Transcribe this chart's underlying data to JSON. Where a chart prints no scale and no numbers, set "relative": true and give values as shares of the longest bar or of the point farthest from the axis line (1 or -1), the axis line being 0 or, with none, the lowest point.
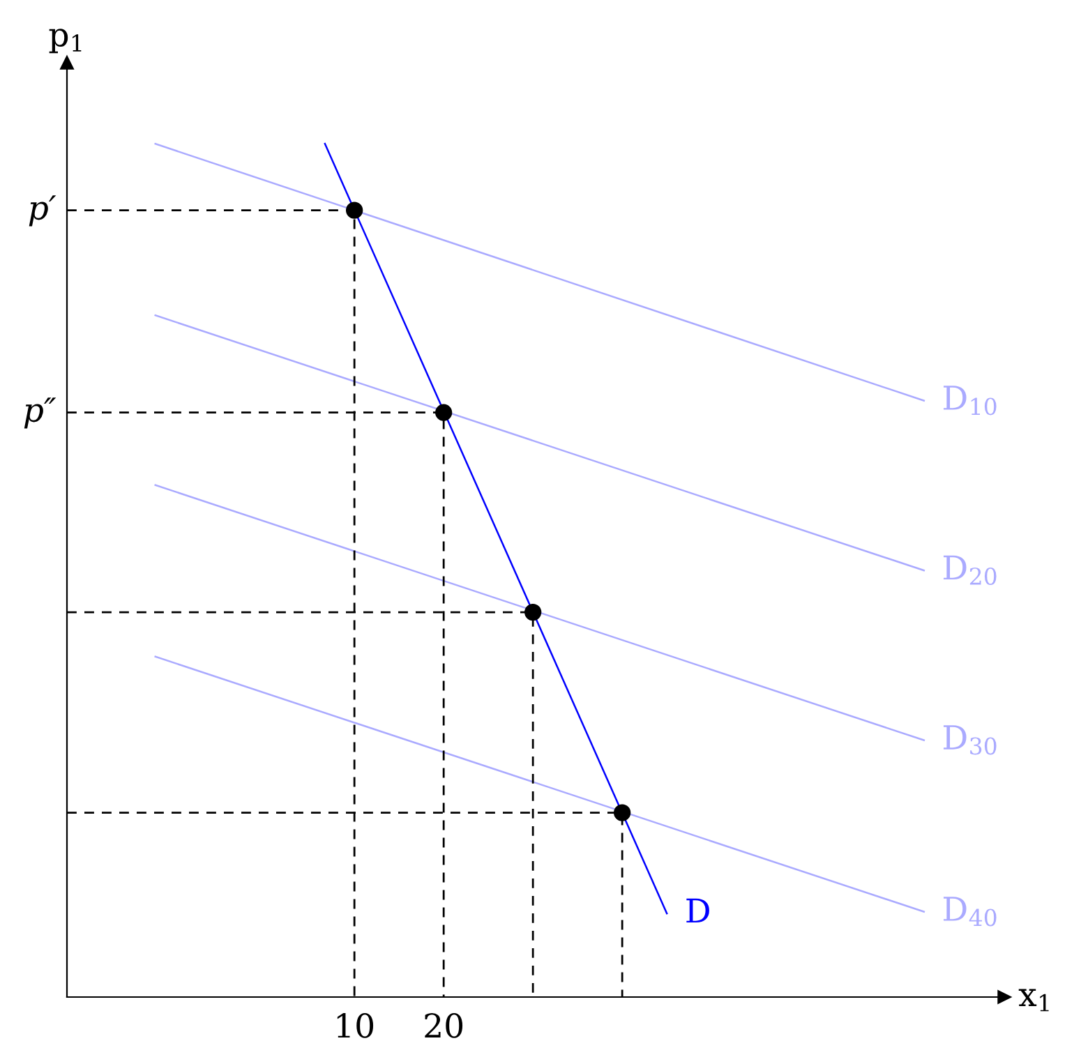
{
  "chart_data": {
    "type": "line",
    "relative": true,
    "xlabel": "x$_{1}$",
    "ylabel": "p$_{1}$",
    "xlim": [
      -22.2,
      82.8
    ],
    "xticks": [
      10,
      20
    ],
    "grid": false,
    "legend": false,
    "series": [
      {
        "name": "D$_{10}$",
        "color": "#aaaaff",
        "line_style": "solid",
        "x": [
          -12.3,
          73.8
        ],
        "values": [
          1.0,
          0.699
        ]
      },
      {
        "name": "D$_{20}$",
        "color": "#aaaaff",
        "line_style": "solid",
        "x": [
          -12.3,
          73.8
        ],
        "values": [
          0.799,
          0.5
        ]
      },
      {
        "name": "D$_{30}$",
        "color": "#aaaaff",
        "line_style": "solid",
        "x": [
          -12.3,
          73.8
        ],
        "values": [
          0.6,
          0.301
        ]
      },
      {
        "name": "D$_{40}$",
        "color": "#aaaaff",
        "line_style": "solid",
        "x": [
          -12.3,
          73.8
        ],
        "values": [
          0.399,
          0.1
        ]
      },
      {
        "name": "D",
        "color": "#0000ff",
        "line_style": "solid",
        "x": [
          6.7,
          45.0
        ],
        "values": [
          1.0,
          0.098
        ]
      },
      {
        "color": "#000000",
        "line_style": "dashed",
        "x": [
          -22.2,
          10,
          10
        ],
        "values": [
          0.922,
          0.922,
          0
        ]
      },
      {
        "color": "#000000",
        "line_style": "dashed",
        "x": [
          -22.2,
          20,
          20
        ],
        "values": [
          0.685,
          0.685,
          0
        ]
      },
      {
        "color": "#000000",
        "line_style": "dashed",
        "x": [
          -22.2,
          30,
          30
        ],
        "values": [
          0.451,
          0.451,
          0
        ]
      },
      {
        "color": "#000000",
        "line_style": "dashed",
        "x": [
          -22.2,
          40,
          40
        ],
        "values": [
          0.216,
          0.216,
          0
        ]
      },
      {
        "type": "scatter",
        "color": "#000000",
        "marker": "circle",
        "x": [
          10,
          20,
          30,
          40
        ],
        "values": [
          0.922,
          0.685,
          0.451,
          0.216
        ]
      }
    ],
    "annotations": [
      {
        "text": "p′",
        "x": -22.2,
        "y": 0.922
      },
      {
        "text": "p″",
        "x": -22.2,
        "y": 0.685
      }
    ]
  }
}
